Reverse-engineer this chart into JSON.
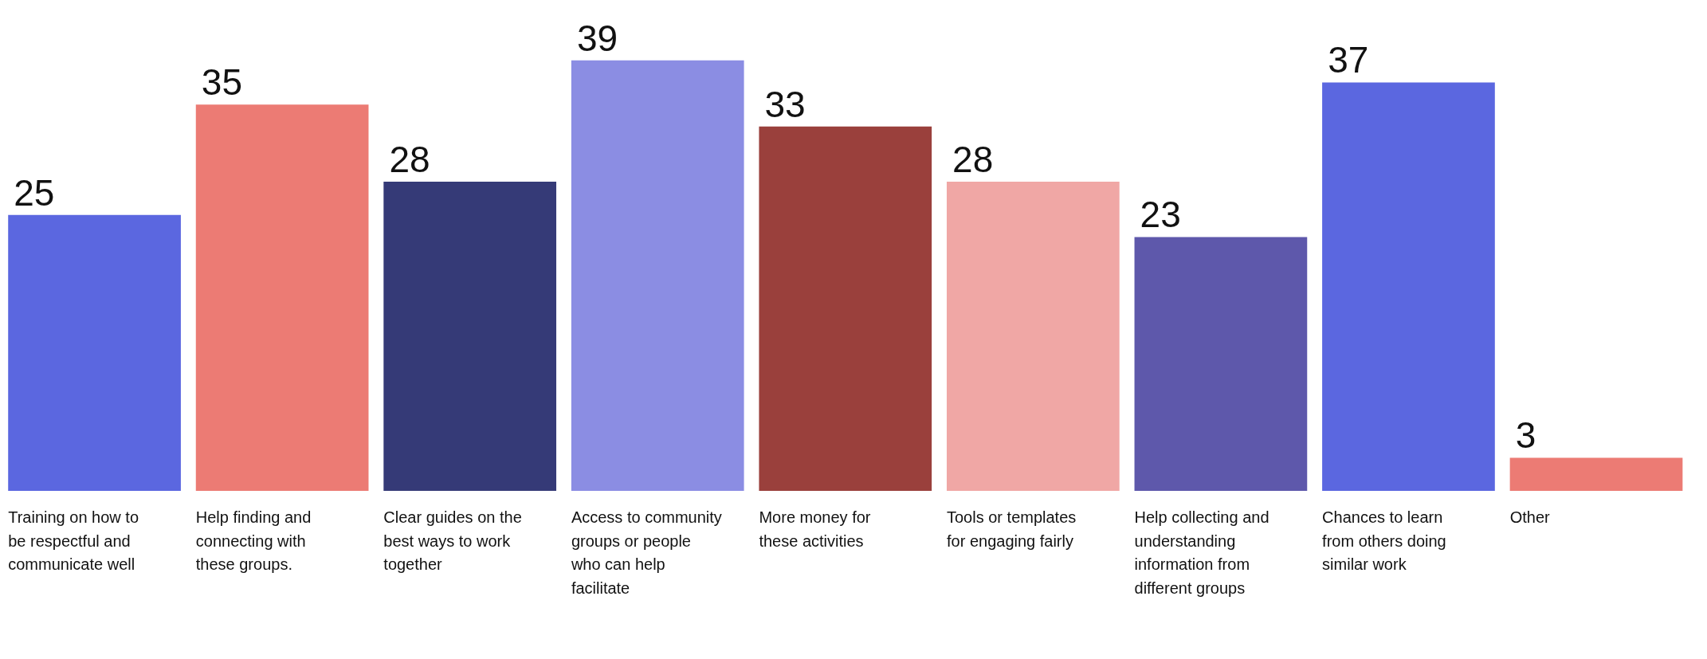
{
  "chart_data": {
    "type": "bar",
    "data_labels": true,
    "categories": [
      "Training on how to be respectful and communicate well",
      "Help finding and connecting with these groups.",
      "Clear guides on the best ways to work together",
      "Access to community groups or people who can help facilitate",
      "More money for these activities",
      "Tools or templates for engaging fairly",
      "Help collecting and understanding information from different groups",
      "Chances to learn from others doing similar work",
      "Other"
    ],
    "values": [
      25,
      35,
      28,
      39,
      33,
      28,
      23,
      37,
      3
    ],
    "colors": [
      "#5b67e0",
      "#ec7b74",
      "#353a77",
      "#8b8de3",
      "#9a403c",
      "#f0a7a5",
      "#5e58ab",
      "#5b67e0",
      "#ec7b74"
    ]
  }
}
